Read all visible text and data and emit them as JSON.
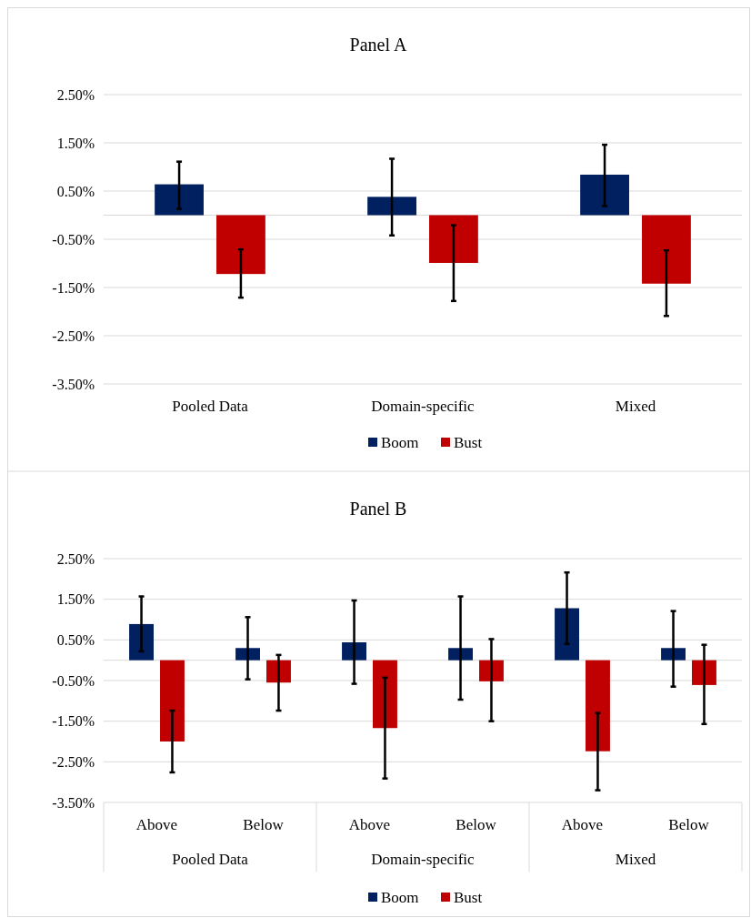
{
  "chart_data": [
    {
      "type": "bar",
      "title": "Panel A",
      "categories": [
        "Pooled Data",
        "Domain-specific",
        "Mixed"
      ],
      "series": [
        {
          "name": "Boom",
          "color": "#002060",
          "values": [
            0.64,
            0.38,
            0.84
          ],
          "errors": [
            [
              0.13,
              1.11
            ],
            [
              -0.42,
              1.17
            ],
            [
              0.19,
              1.46
            ]
          ]
        },
        {
          "name": "Bust",
          "color": "#c00000",
          "values": [
            -1.22,
            -0.99,
            -1.42
          ],
          "errors": [
            [
              -1.71,
              -0.71
            ],
            [
              -1.78,
              -0.21
            ],
            [
              -2.09,
              -0.73
            ]
          ]
        }
      ],
      "ylim": [
        -3.5,
        2.5
      ],
      "yticks": [
        {
          "value": 2.5,
          "label": "2.50%"
        },
        {
          "value": 1.5,
          "label": "1.50%"
        },
        {
          "value": 0.5,
          "label": "0.50%"
        },
        {
          "value": -0.5,
          "label": "-0.50%"
        },
        {
          "value": -1.5,
          "label": "-1.50%"
        },
        {
          "value": -2.5,
          "label": "-2.50%"
        },
        {
          "value": -3.5,
          "label": "-3.50%"
        }
      ],
      "grid": "y",
      "legend": "bottom"
    },
    {
      "type": "bar",
      "title": "Panel B",
      "categories": [
        "Above",
        "Below",
        "Above",
        "Below",
        "Above",
        "Below"
      ],
      "annotations": [
        "Pooled Data",
        "Domain-specific",
        "Mixed"
      ],
      "series": [
        {
          "name": "Boom",
          "color": "#002060",
          "values": [
            0.89,
            0.3,
            0.44,
            0.3,
            1.28,
            0.3
          ],
          "errors": [
            [
              0.22,
              1.57
            ],
            [
              -0.47,
              1.06
            ],
            [
              -0.58,
              1.47
            ],
            [
              -0.97,
              1.57
            ],
            [
              0.4,
              2.16
            ],
            [
              -0.65,
              1.21
            ]
          ]
        },
        {
          "name": "Bust",
          "color": "#c00000",
          "values": [
            -2.0,
            -0.55,
            -1.67,
            -0.52,
            -2.24,
            -0.61
          ],
          "errors": [
            [
              -2.76,
              -1.24
            ],
            [
              -1.24,
              0.13
            ],
            [
              -2.91,
              -0.43
            ],
            [
              -1.5,
              0.52
            ],
            [
              -3.2,
              -1.3
            ],
            [
              -1.57,
              0.38
            ]
          ]
        }
      ],
      "ylim": [
        -3.5,
        2.5
      ],
      "yticks": [
        {
          "value": 2.5,
          "label": "2.50%"
        },
        {
          "value": 1.5,
          "label": "1.50%"
        },
        {
          "value": 0.5,
          "label": "0.50%"
        },
        {
          "value": -0.5,
          "label": "-0.50%"
        },
        {
          "value": -1.5,
          "label": "-1.50%"
        },
        {
          "value": -2.5,
          "label": "-2.50%"
        },
        {
          "value": -3.5,
          "label": "-3.50%"
        }
      ],
      "grid": "y",
      "legend": "bottom"
    }
  ]
}
